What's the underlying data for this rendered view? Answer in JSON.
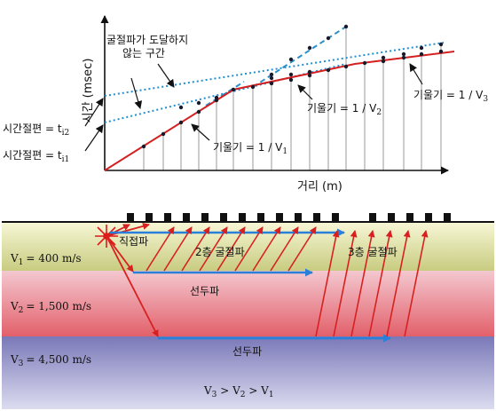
{
  "time_distance": {
    "y_axis_label": "시간 (msec)",
    "x_axis_label": "거리 (m)",
    "no_refraction_note_line1": "굴절파가 도달하지",
    "no_refraction_note_line2": "않는 구간",
    "intercept_ti2_label": "시간절편 = t",
    "intercept_ti2_sub": "i2",
    "intercept_ti1_label": "시간절편 = t",
    "intercept_ti1_sub": "i1",
    "slope_v1_label": "기울기 = 1 / V",
    "slope_v1_sub": "1",
    "slope_v2_label": "기울기 = 1 / V",
    "slope_v2_sub": "2",
    "slope_v3_label": "기울기 = 1 / V",
    "slope_v3_sub": "3",
    "colors": {
      "first_arrival": "#d42020",
      "layer2_branch": "#1f8fd0",
      "layer3_branch": "#2a8fc8",
      "marker": "#1a1a2a",
      "axis": "#000000"
    }
  },
  "cross_section": {
    "layer1": {
      "label": "V",
      "sub": "1",
      "value": "= 400 m/s",
      "color_top": "#f8f8d8",
      "color_bottom": "#c8cc80"
    },
    "layer2": {
      "label": "V",
      "sub": "2",
      "value": "= 1,500 m/s",
      "color_top": "#f4c8d0",
      "color_bottom": "#e2606a"
    },
    "layer3": {
      "label": "V",
      "sub": "3",
      "value": "= 4,500 m/s",
      "color_top": "#7a78b8",
      "color_bottom": "#dcdcf0"
    },
    "direct_wave_label": "직접파",
    "layer2_refraction_label": "2층 굴절파",
    "layer3_refraction_label": "3층 굴절파",
    "head_wave_label_1": "선두파",
    "head_wave_label_2": "선두파",
    "velocity_order_v3": "V",
    "velocity_order_v3_sub": "3",
    "velocity_order_gt1": " > V",
    "velocity_order_v2_sub": "2",
    "velocity_order_gt2": " > V",
    "velocity_order_v1_sub": "1",
    "geophone_count": 16,
    "icons": [
      "source-star-icon",
      "geophone-icon"
    ],
    "colors": {
      "ray": "#d82020",
      "head_wave": "#2a7fd8",
      "geophone": "#111111",
      "source": "#e01818"
    }
  }
}
